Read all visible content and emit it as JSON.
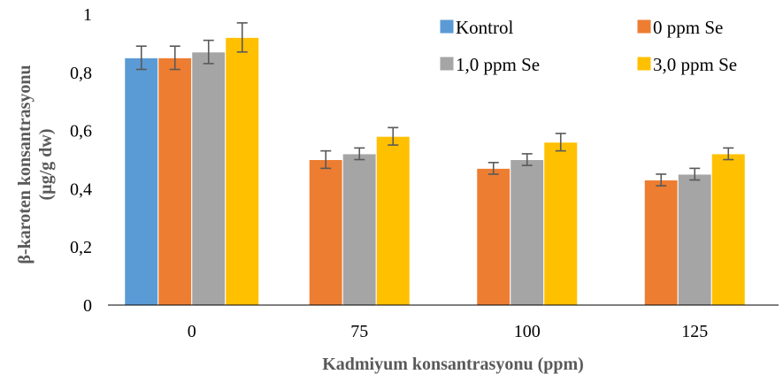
{
  "chart_data": {
    "type": "bar",
    "categories": [
      "0",
      "75",
      "100",
      "125"
    ],
    "series": [
      {
        "name": "Kontrol",
        "color": "#5B9BD5",
        "values": [
          0.85,
          null,
          null,
          null
        ],
        "errors": [
          0.04,
          null,
          null,
          null
        ]
      },
      {
        "name": "0 ppm Se",
        "color": "#ED7D31",
        "values": [
          0.85,
          0.5,
          0.47,
          0.43
        ],
        "errors": [
          0.04,
          0.03,
          0.02,
          0.02
        ]
      },
      {
        "name": "1,0 ppm Se",
        "color": "#A5A5A5",
        "values": [
          0.87,
          0.52,
          0.5,
          0.45
        ],
        "errors": [
          0.04,
          0.02,
          0.02,
          0.02
        ]
      },
      {
        "name": "3,0 ppm Se",
        "color": "#FFC000",
        "values": [
          0.92,
          0.58,
          0.56,
          0.52
        ],
        "errors": [
          0.05,
          0.03,
          0.03,
          0.02
        ]
      }
    ],
    "xlabel": "Kadmiyum konsantrasyonu (ppm)",
    "ylabel_line1": "β-karoten konsantrasyonu",
    "ylabel_line2": "(µg/g dw)",
    "ylim": [
      0,
      1
    ],
    "yticks": [
      "0",
      "0,2",
      "0,4",
      "0,6",
      "0,8",
      "1"
    ],
    "grid": false,
    "legend_position": "top-right"
  }
}
